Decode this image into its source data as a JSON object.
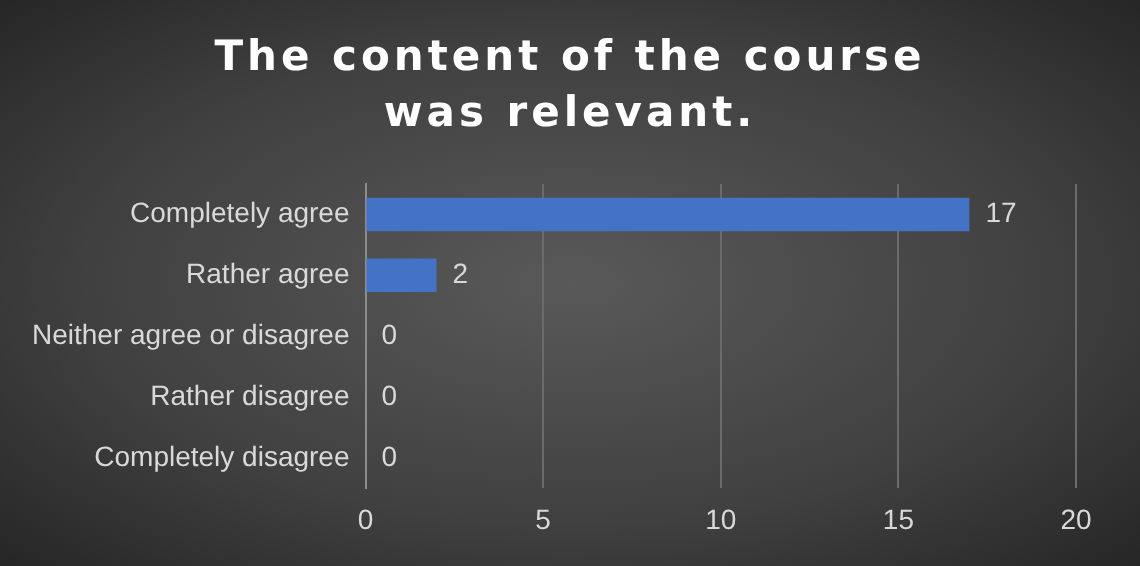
{
  "chart_data": {
    "type": "bar",
    "orientation": "horizontal",
    "title": "The content of the course was relevant.",
    "categories": [
      "Completely agree",
      "Rather agree",
      "Neither agree or disagree",
      "Rather disagree",
      "Completely disagree"
    ],
    "values": [
      17,
      2,
      0,
      0,
      0
    ],
    "color": "#4472c4",
    "xlim": [
      0,
      20
    ],
    "xticks": [
      0,
      5,
      10,
      15,
      20
    ],
    "grid": "x",
    "data_labels": true,
    "legend": false
  }
}
